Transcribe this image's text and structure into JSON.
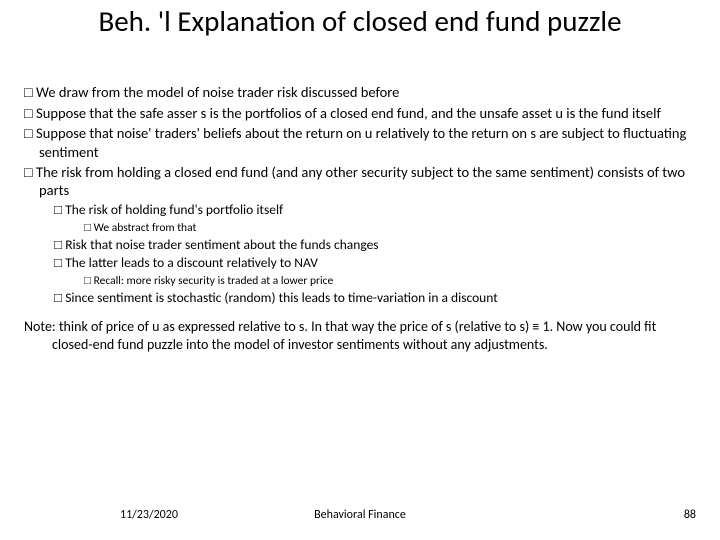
{
  "title": "Beh. 'l Explanation of closed end fund puzzle",
  "bullets": {
    "b1": "We draw from the model of noise trader risk discussed before",
    "b2": "Suppose that the safe asser s is the portfolios of a closed end fund, and the unsafe asset u is the fund itself",
    "b3": "Suppose that noise' traders' beliefs about the return on u relatively to the return on s are subject to fluctuating sentiment",
    "b4": "The risk from holding a closed end fund (and any other security subject to the same sentiment) consists of two parts",
    "b4a": "The risk of  holding fund's portfolio itself",
    "b4a1": "We abstract from that",
    "b4b": "Risk that noise trader sentiment about the funds changes",
    "b4c": "The latter leads to a discount relatively to NAV",
    "b4c1": "Recall:  more risky security is traded at a lower price",
    "b4d": "Since sentiment is stochastic (random) this leads to time-variation in a discount"
  },
  "note": "Note: think of price of u as expressed relative to s. In that way the price of s (relative to s) ≡ 1.  Now you could fit closed-end fund puzzle into the model of investor sentiments without any adjustments.",
  "footer": {
    "date": "11/23/2020",
    "center": "Behavioral Finance",
    "page": "88"
  },
  "glyph": {
    "square": "□"
  }
}
